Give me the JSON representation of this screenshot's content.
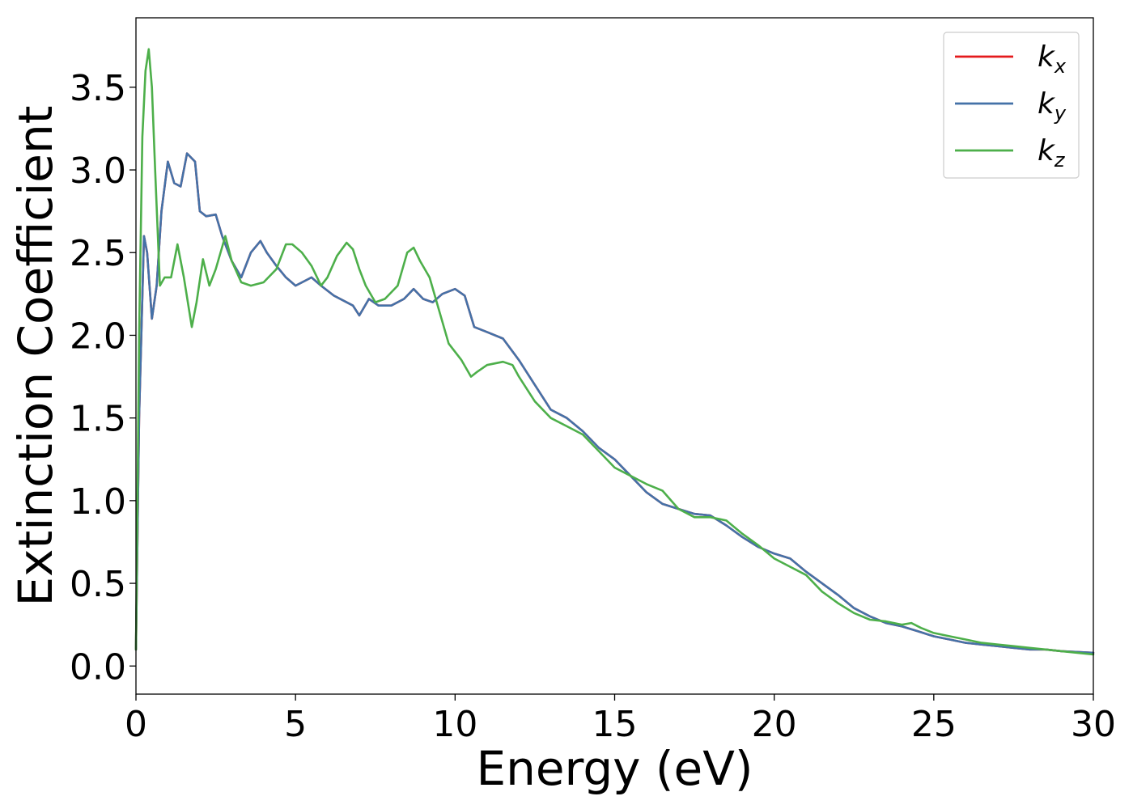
{
  "chart_data": {
    "type": "line",
    "title": "",
    "xlabel": "Energy (eV)",
    "ylabel": "Extinction Coefficient",
    "xlim": [
      0,
      30
    ],
    "ylim": [
      -0.17,
      3.92
    ],
    "xticks": [
      0,
      5,
      10,
      15,
      20,
      25,
      30
    ],
    "xtick_labels": [
      "0",
      "5",
      "10",
      "15",
      "20",
      "25",
      "30"
    ],
    "yticks": [
      0.0,
      0.5,
      1.0,
      1.5,
      2.0,
      2.5,
      3.0,
      3.5
    ],
    "ytick_labels": [
      "0.0",
      "0.5",
      "1.0",
      "1.5",
      "2.0",
      "2.5",
      "3.0",
      "3.5"
    ],
    "grid": false,
    "legend_position": "top-right",
    "series": [
      {
        "name": "k_x",
        "legend_base": "k",
        "legend_sub": "x",
        "color": "#e41a1c",
        "x": [
          0,
          0.1,
          0.25,
          0.35,
          0.5,
          0.65,
          0.8,
          1.0,
          1.2,
          1.4,
          1.6,
          1.85,
          2.0,
          2.2,
          2.5,
          2.7,
          3.0,
          3.3,
          3.6,
          3.9,
          4.1,
          4.4,
          4.7,
          5.0,
          5.5,
          5.8,
          6.2,
          6.8,
          7.0,
          7.3,
          7.6,
          8.0,
          8.4,
          8.7,
          9.0,
          9.3,
          9.6,
          10.0,
          10.3,
          10.6,
          11.0,
          11.5,
          12.0,
          12.5,
          13.0,
          13.5,
          14.0,
          14.5,
          15.0,
          15.5,
          16.0,
          16.5,
          17.0,
          17.5,
          18.0,
          18.5,
          19.0,
          19.5,
          20.0,
          20.5,
          21.0,
          21.5,
          22.0,
          22.5,
          23.0,
          23.5,
          24.0,
          24.5,
          25.0,
          25.5,
          26.0,
          26.5,
          27.0,
          27.5,
          28.0,
          28.5,
          29.0,
          29.5,
          30.0
        ],
        "values": [
          0.1,
          1.5,
          2.6,
          2.5,
          2.1,
          2.3,
          2.75,
          3.05,
          2.92,
          2.9,
          3.1,
          3.05,
          2.75,
          2.72,
          2.73,
          2.6,
          2.45,
          2.35,
          2.5,
          2.57,
          2.5,
          2.42,
          2.35,
          2.3,
          2.35,
          2.3,
          2.24,
          2.18,
          2.12,
          2.22,
          2.18,
          2.18,
          2.22,
          2.28,
          2.22,
          2.2,
          2.25,
          2.28,
          2.24,
          2.05,
          2.02,
          1.98,
          1.85,
          1.7,
          1.55,
          1.5,
          1.42,
          1.32,
          1.25,
          1.15,
          1.05,
          0.98,
          0.95,
          0.92,
          0.91,
          0.85,
          0.78,
          0.72,
          0.68,
          0.65,
          0.57,
          0.5,
          0.43,
          0.35,
          0.3,
          0.26,
          0.24,
          0.21,
          0.18,
          0.16,
          0.14,
          0.13,
          0.12,
          0.11,
          0.1,
          0.1,
          0.09,
          0.085,
          0.08
        ]
      },
      {
        "name": "k_y",
        "legend_base": "k",
        "legend_sub": "y",
        "color": "#4472a8",
        "x": [
          0,
          0.1,
          0.25,
          0.35,
          0.5,
          0.65,
          0.8,
          1.0,
          1.2,
          1.4,
          1.6,
          1.85,
          2.0,
          2.2,
          2.5,
          2.7,
          3.0,
          3.3,
          3.6,
          3.9,
          4.1,
          4.4,
          4.7,
          5.0,
          5.5,
          5.8,
          6.2,
          6.8,
          7.0,
          7.3,
          7.6,
          8.0,
          8.4,
          8.7,
          9.0,
          9.3,
          9.6,
          10.0,
          10.3,
          10.6,
          11.0,
          11.5,
          12.0,
          12.5,
          13.0,
          13.5,
          14.0,
          14.5,
          15.0,
          15.5,
          16.0,
          16.5,
          17.0,
          17.5,
          18.0,
          18.5,
          19.0,
          19.5,
          20.0,
          20.5,
          21.0,
          21.5,
          22.0,
          22.5,
          23.0,
          23.5,
          24.0,
          24.5,
          25.0,
          25.5,
          26.0,
          26.5,
          27.0,
          27.5,
          28.0,
          28.5,
          29.0,
          29.5,
          30.0
        ],
        "values": [
          0.1,
          1.5,
          2.6,
          2.5,
          2.1,
          2.3,
          2.75,
          3.05,
          2.92,
          2.9,
          3.1,
          3.05,
          2.75,
          2.72,
          2.73,
          2.6,
          2.45,
          2.35,
          2.5,
          2.57,
          2.5,
          2.42,
          2.35,
          2.3,
          2.35,
          2.3,
          2.24,
          2.18,
          2.12,
          2.22,
          2.18,
          2.18,
          2.22,
          2.28,
          2.22,
          2.2,
          2.25,
          2.28,
          2.24,
          2.05,
          2.02,
          1.98,
          1.85,
          1.7,
          1.55,
          1.5,
          1.42,
          1.32,
          1.25,
          1.15,
          1.05,
          0.98,
          0.95,
          0.92,
          0.91,
          0.85,
          0.78,
          0.72,
          0.68,
          0.65,
          0.57,
          0.5,
          0.43,
          0.35,
          0.3,
          0.26,
          0.24,
          0.21,
          0.18,
          0.16,
          0.14,
          0.13,
          0.12,
          0.11,
          0.1,
          0.1,
          0.09,
          0.085,
          0.08
        ]
      },
      {
        "name": "k_z",
        "legend_base": "k",
        "legend_sub": "z",
        "color": "#4daf4a",
        "x": [
          0,
          0.1,
          0.2,
          0.3,
          0.4,
          0.5,
          0.6,
          0.75,
          0.9,
          1.1,
          1.3,
          1.5,
          1.75,
          1.9,
          2.1,
          2.3,
          2.5,
          2.8,
          3.0,
          3.3,
          3.6,
          4.0,
          4.4,
          4.7,
          4.9,
          5.2,
          5.5,
          5.8,
          6.0,
          6.3,
          6.6,
          6.8,
          7.0,
          7.2,
          7.5,
          7.8,
          8.2,
          8.5,
          8.7,
          8.9,
          9.2,
          9.5,
          9.8,
          10.2,
          10.5,
          10.7,
          11.0,
          11.5,
          11.8,
          12.0,
          12.5,
          13.0,
          13.5,
          14.0,
          14.5,
          15.0,
          15.5,
          16.0,
          16.5,
          17.0,
          17.5,
          18.0,
          18.5,
          19.0,
          19.5,
          20.0,
          20.5,
          21.0,
          21.5,
          22.0,
          22.5,
          23.0,
          23.5,
          24.0,
          24.3,
          24.6,
          25.0,
          25.5,
          26.0,
          26.5,
          27.0,
          27.5,
          28.0,
          28.5,
          29.0,
          29.5,
          30.0
        ],
        "values": [
          0.1,
          2.0,
          3.2,
          3.6,
          3.73,
          3.5,
          3.0,
          2.3,
          2.35,
          2.35,
          2.55,
          2.35,
          2.05,
          2.2,
          2.46,
          2.3,
          2.4,
          2.6,
          2.45,
          2.32,
          2.3,
          2.32,
          2.4,
          2.55,
          2.55,
          2.5,
          2.42,
          2.3,
          2.35,
          2.48,
          2.56,
          2.52,
          2.4,
          2.3,
          2.2,
          2.22,
          2.3,
          2.5,
          2.53,
          2.45,
          2.35,
          2.15,
          1.95,
          1.85,
          1.75,
          1.78,
          1.82,
          1.84,
          1.82,
          1.75,
          1.6,
          1.5,
          1.45,
          1.4,
          1.3,
          1.2,
          1.15,
          1.1,
          1.06,
          0.95,
          0.9,
          0.9,
          0.88,
          0.8,
          0.73,
          0.65,
          0.6,
          0.55,
          0.45,
          0.38,
          0.32,
          0.28,
          0.27,
          0.25,
          0.26,
          0.23,
          0.2,
          0.18,
          0.16,
          0.14,
          0.13,
          0.12,
          0.11,
          0.1,
          0.09,
          0.08,
          0.07
        ]
      }
    ]
  }
}
